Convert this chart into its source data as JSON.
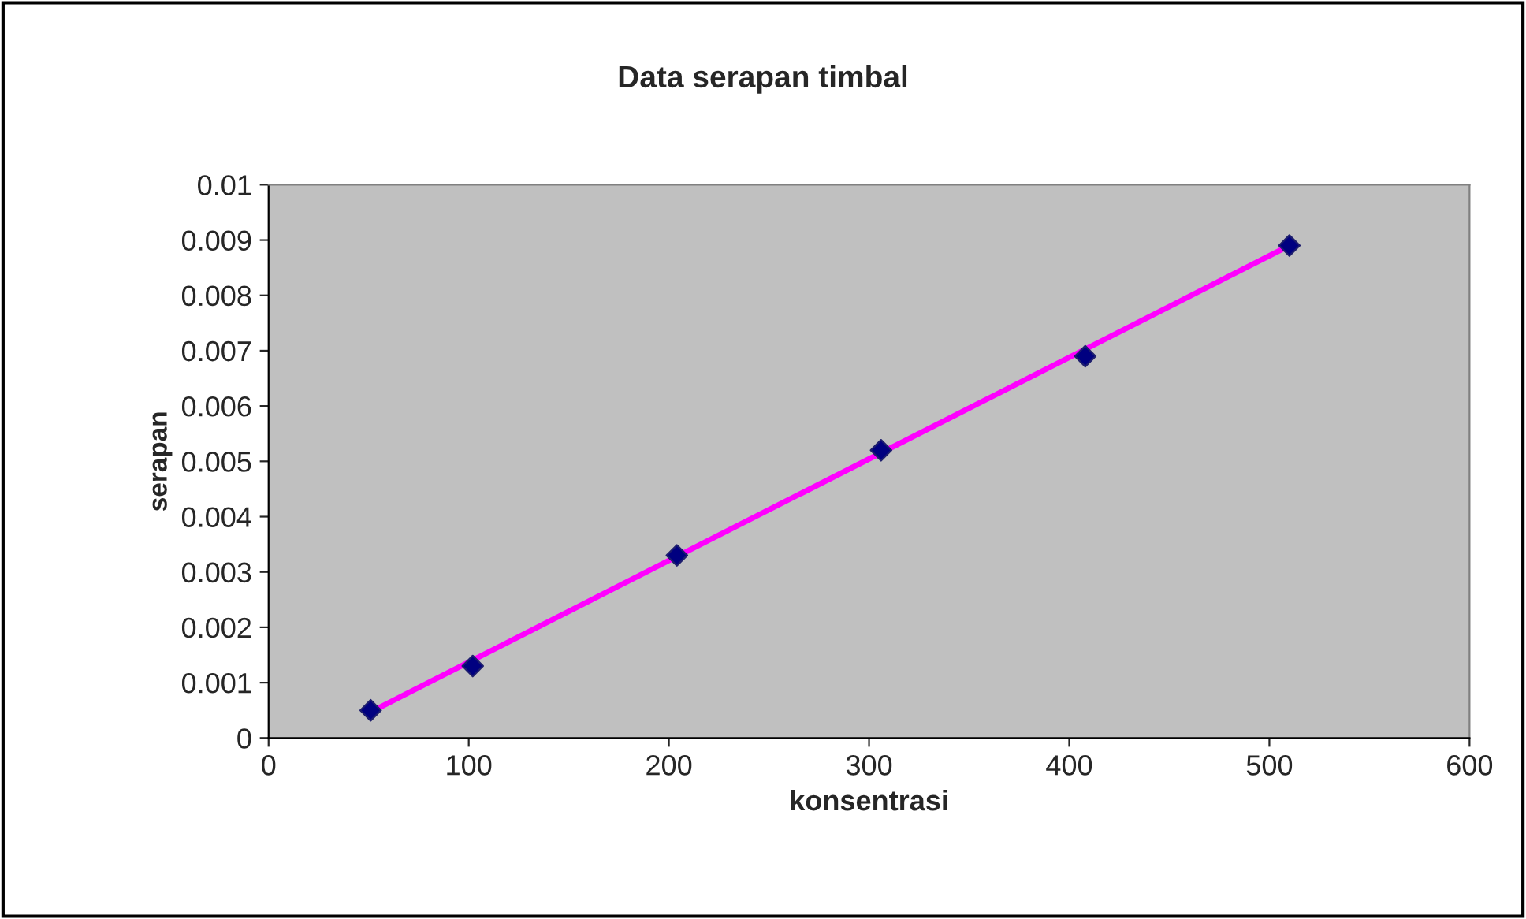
{
  "chart_data": {
    "type": "scatter",
    "title": "Data serapan timbal",
    "xlabel": "konsentrasi",
    "ylabel": "serapan",
    "xlim": [
      0,
      600
    ],
    "xticks": [
      0,
      100,
      200,
      300,
      400,
      500,
      600
    ],
    "ylim": [
      0,
      0.01
    ],
    "yticks": [
      0,
      0.001,
      0.002,
      0.003,
      0.004,
      0.005,
      0.006,
      0.007,
      0.008,
      0.009,
      0.01
    ],
    "grid": false,
    "series": [
      {
        "marker": "diamond",
        "color": "#000080",
        "x": [
          51,
          102,
          204,
          306,
          408,
          510
        ],
        "values": [
          0.0005,
          0.0013,
          0.0033,
          0.0052,
          0.0069,
          0.0089
        ]
      },
      {
        "type": "line",
        "marker": "none",
        "color": "#ff00ff",
        "x": [
          51,
          510
        ],
        "values": [
          0.00047,
          0.0089
        ]
      }
    ]
  }
}
